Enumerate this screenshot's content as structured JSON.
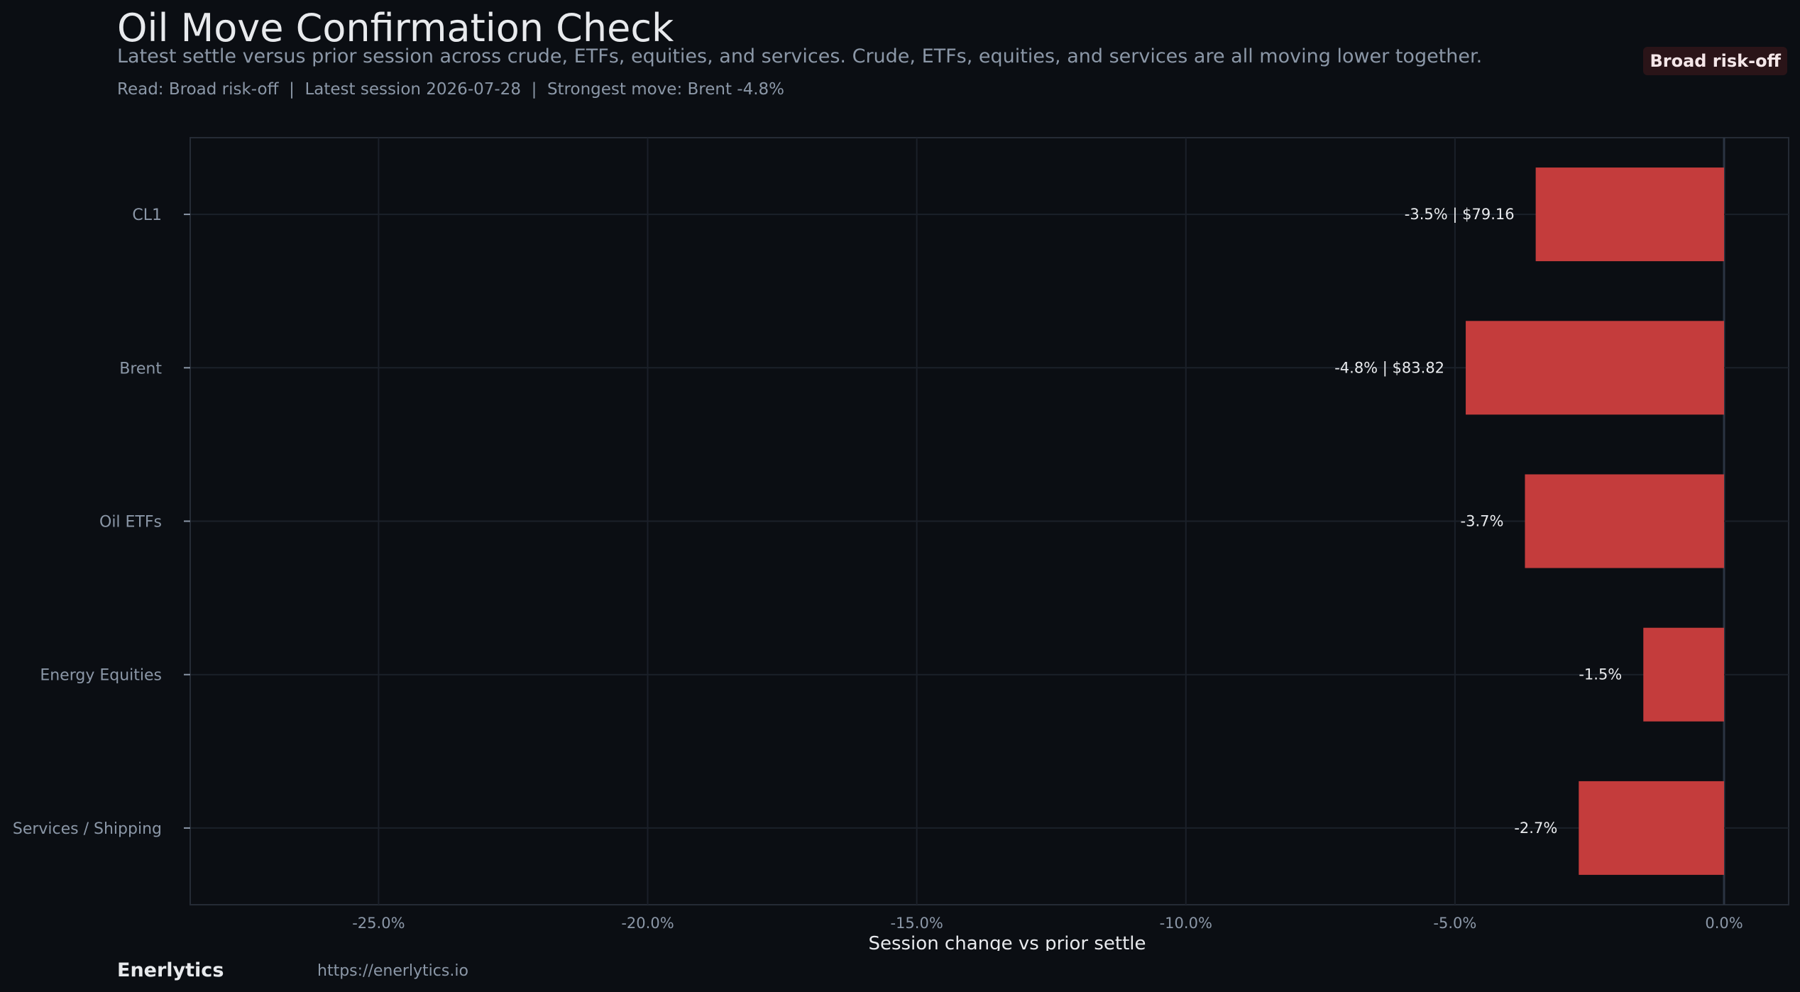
{
  "header": {
    "title": "Oil Move Confirmation Check",
    "subtitle": "Latest settle versus prior session across crude, ETFs, equities, and services. Crude, ETFs, equities, and services are all moving lower together.",
    "read_line": "Read: Broad risk-off  |  Latest session 2026-07-28  |  Strongest move: Brent -4.8%",
    "badge": "Broad risk-off"
  },
  "footer": {
    "brand": "Enerlytics",
    "url": "https://enerlytics.io"
  },
  "colors": {
    "background": "#0b0e13",
    "bar": "#c43c3c",
    "grid": "#1b2029",
    "axis_text": "#8b97a7",
    "label_text": "#e8eaed",
    "badge_bg": "#2a1418"
  },
  "chart_data": {
    "type": "bar",
    "orientation": "horizontal",
    "categories": [
      "CL1",
      "Brent",
      "Oil ETFs",
      "Energy Equities",
      "Services / Shipping"
    ],
    "values": [
      -3.5,
      -4.8,
      -3.7,
      -1.5,
      -2.7
    ],
    "data_labels": [
      "-3.5% | $79.16",
      "-4.8% | $83.82",
      "-3.7%",
      "-1.5%",
      "-2.7%"
    ],
    "xlabel": "Session change vs prior settle",
    "ylabel": "",
    "xlim": [
      -28.5,
      1.2
    ],
    "xticks": [
      -25,
      -20,
      -15,
      -10,
      -5,
      0
    ],
    "xtick_labels": [
      "-25.0%",
      "-20.0%",
      "-15.0%",
      "-10.0%",
      "-5.0%",
      "0.0%"
    ],
    "grid": true,
    "legend": "none"
  }
}
